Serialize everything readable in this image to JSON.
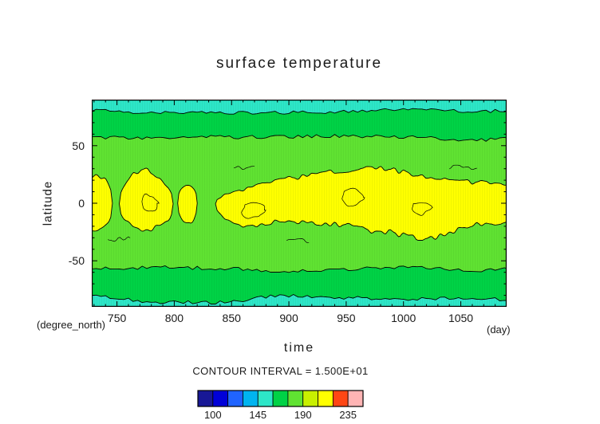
{
  "chart_data": {
    "type": "filled_contour",
    "title": "surface temperature",
    "xlabel": "time",
    "ylabel": "latitude",
    "x_units": "(day)",
    "y_units": "(degree_north)",
    "contour_note": "CONTOUR INTERVAL = 1.500E+01",
    "contour_interval": 15,
    "x_range": [
      728,
      1090
    ],
    "y_range": [
      -90,
      90
    ],
    "x_ticks": [
      {
        "v": 750,
        "label": "750"
      },
      {
        "v": 800,
        "label": "800"
      },
      {
        "v": 850,
        "label": "850"
      },
      {
        "v": 900,
        "label": "900"
      },
      {
        "v": 950,
        "label": "950"
      },
      {
        "v": 1000,
        "label": "1000"
      },
      {
        "v": 1050,
        "label": "1050"
      }
    ],
    "x_minor_step": 10,
    "y_ticks": [
      {
        "v": 50,
        "label": "50"
      },
      {
        "v": 0,
        "label": "0"
      },
      {
        "v": -50,
        "label": "-50"
      }
    ],
    "y_minor_step": 10,
    "field_colors": {
      "core": "#ffff00",
      "mid": "#60e232",
      "band": "#00d246",
      "polar": "#2de6c8"
    },
    "regions": {
      "bands": [
        {
          "name": "north-green-band",
          "edge": "top",
          "lat": 57,
          "amp1": 2.4,
          "amp2": 1.6,
          "fill": "#00d246",
          "seed": 11
        },
        {
          "name": "north-cyan-cap",
          "edge": "top",
          "lat": 80,
          "amp1": 2.2,
          "amp2": 1.4,
          "fill": "#2de6c8",
          "seed": 22
        },
        {
          "name": "south-green-band",
          "edge": "bottom",
          "lat": -57,
          "amp1": 2.4,
          "amp2": 1.6,
          "fill": "#00d246",
          "seed": 33
        },
        {
          "name": "south-cyan-cap",
          "edge": "bottom",
          "lat": -83,
          "amp1": 4.0,
          "amp2": 1.5,
          "fill": "#2de6c8",
          "seed": 44
        }
      ],
      "blobs": [
        {
          "ta": 716,
          "tb": 746,
          "top": 27,
          "bottom": -27,
          "wob": 4,
          "jag": 2.5,
          "seed": 101
        },
        {
          "ta": 752,
          "tb": 799,
          "top": 23,
          "bottom": -24,
          "wob": 6,
          "jag": 2.5,
          "seed": 202
        },
        {
          "ta": 803,
          "tb": 820,
          "top": 17,
          "bottom": -17,
          "wob": 3,
          "jag": 2.0,
          "seed": 303
        },
        {
          "ta": 836,
          "tb": 1130,
          "top": 26,
          "bottom": -27,
          "wob": 9,
          "jag": 2.5,
          "seed": 404
        }
      ],
      "inner_loops": [
        {
          "t": 778,
          "lat": 0,
          "rt": 7,
          "rl": 8
        },
        {
          "t": 868,
          "lat": -6,
          "rt": 10,
          "rl": 7
        },
        {
          "t": 955,
          "lat": 5,
          "rt": 9,
          "rl": 7
        },
        {
          "t": 1015,
          "lat": -4,
          "rt": 8,
          "rl": 6
        }
      ],
      "squiggles": [
        {
          "t0": 742,
          "t1": 762,
          "lat": -31
        },
        {
          "t0": 852,
          "t1": 870,
          "lat": 30
        },
        {
          "t0": 898,
          "t1": 918,
          "lat": -33
        },
        {
          "t0": 1040,
          "t1": 1064,
          "lat": 31
        }
      ]
    },
    "colorbar": {
      "colors": [
        "#181896",
        "#0000d8",
        "#2064ff",
        "#00b4f0",
        "#2de6c8",
        "#00d246",
        "#60e232",
        "#c8f000",
        "#ffff00",
        "#ff4614",
        "#ffb4b4"
      ],
      "labels": [
        {
          "value": "100",
          "boundary": 1
        },
        {
          "value": "145",
          "boundary": 4
        },
        {
          "value": "190",
          "boundary": 7
        },
        {
          "value": "235",
          "boundary": 10
        }
      ]
    }
  }
}
